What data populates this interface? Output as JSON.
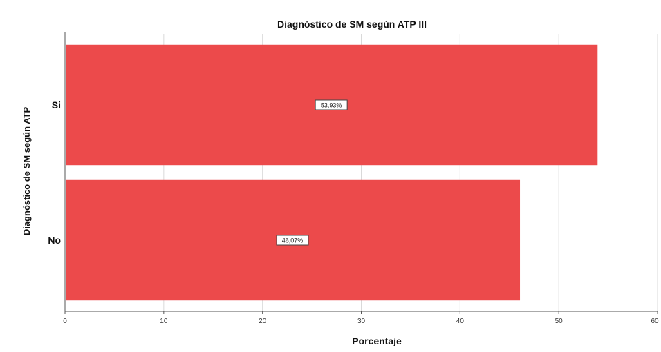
{
  "chart_data": {
    "type": "bar",
    "orientation": "horizontal",
    "title": "Diagnóstico de SM según ATP III",
    "xlabel": "Porcentaje",
    "ylabel": "Diagnóstico de SM según ATP",
    "categories": [
      "Si",
      "No"
    ],
    "values": [
      53.93,
      46.07
    ],
    "data_labels": [
      "53,93%",
      "46,07%"
    ],
    "xlim": [
      0,
      60
    ],
    "xticks": [
      0,
      10,
      20,
      30,
      40,
      50,
      60
    ],
    "xtick_labels": [
      "0",
      "10",
      "20",
      "30",
      "40",
      "50",
      "60"
    ],
    "grid": true,
    "bar_color": "#ec4a4b"
  }
}
